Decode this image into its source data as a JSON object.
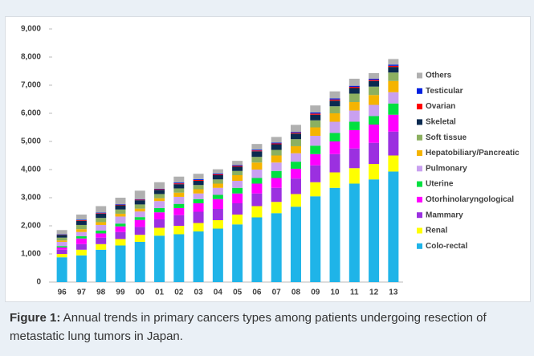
{
  "chart_data": {
    "type": "stacked-bar",
    "categories": [
      "96",
      "97",
      "98",
      "99",
      "00",
      "01",
      "02",
      "03",
      "04",
      "05",
      "06",
      "07",
      "08",
      "09",
      "10",
      "11",
      "12",
      "13"
    ],
    "series": [
      {
        "name": "Colo-rectal",
        "color": "#1fb4e8",
        "values": [
          880,
          950,
          1150,
          1300,
          1430,
          1650,
          1700,
          1800,
          1900,
          2050,
          2300,
          2450,
          2680,
          3050,
          3350,
          3500,
          3650,
          3930
        ]
      },
      {
        "name": "Renal",
        "color": "#ffff00",
        "values": [
          120,
          200,
          200,
          230,
          250,
          280,
          300,
          300,
          300,
          350,
          400,
          400,
          450,
          500,
          550,
          550,
          550,
          570
        ]
      },
      {
        "name": "Mammary",
        "color": "#9b30e0",
        "values": [
          150,
          200,
          230,
          250,
          280,
          300,
          380,
          400,
          400,
          400,
          450,
          500,
          550,
          600,
          650,
          700,
          750,
          850
        ]
      },
      {
        "name": "Otorhinolaryngological",
        "color": "#ff00ff",
        "values": [
          80,
          200,
          150,
          200,
          250,
          250,
          250,
          300,
          350,
          350,
          350,
          350,
          350,
          400,
          450,
          650,
          650,
          600
        ]
      },
      {
        "name": "Uterine",
        "color": "#00e040",
        "values": [
          50,
          80,
          100,
          100,
          100,
          150,
          150,
          150,
          150,
          200,
          200,
          250,
          250,
          300,
          300,
          300,
          300,
          400
        ]
      },
      {
        "name": "Pulmonary",
        "color": "#c9a0f0",
        "values": [
          150,
          150,
          200,
          250,
          200,
          250,
          250,
          200,
          250,
          250,
          300,
          300,
          300,
          350,
          400,
          400,
          400,
          400
        ]
      },
      {
        "name": "Hepatobiliary/Pancreatic",
        "color": "#f5b400",
        "values": [
          50,
          100,
          100,
          100,
          100,
          100,
          150,
          150,
          150,
          200,
          250,
          250,
          250,
          300,
          300,
          300,
          350,
          400
        ]
      },
      {
        "name": "Soft tissue",
        "color": "#8cb060",
        "values": [
          100,
          150,
          150,
          150,
          150,
          150,
          150,
          150,
          150,
          150,
          200,
          200,
          250,
          250,
          250,
          300,
          300,
          300
        ]
      },
      {
        "name": "Skeletal",
        "color": "#0a2a50",
        "values": [
          100,
          150,
          150,
          150,
          150,
          150,
          150,
          150,
          150,
          150,
          200,
          200,
          200,
          200,
          200,
          200,
          200,
          200
        ]
      },
      {
        "name": "Ovarian",
        "color": "#ff0000",
        "values": [
          10,
          20,
          20,
          20,
          20,
          20,
          30,
          30,
          30,
          30,
          30,
          30,
          30,
          40,
          40,
          40,
          40,
          40
        ]
      },
      {
        "name": "Testicular",
        "color": "#0020e0",
        "values": [
          10,
          20,
          20,
          20,
          20,
          20,
          30,
          30,
          30,
          30,
          30,
          30,
          30,
          40,
          40,
          40,
          40,
          40
        ]
      },
      {
        "name": "Others",
        "color": "#b0b0b0",
        "values": [
          150,
          180,
          230,
          230,
          300,
          230,
          210,
          190,
          150,
          150,
          200,
          200,
          250,
          250,
          250,
          250,
          200,
          200
        ]
      }
    ],
    "ylim": [
      0,
      9000
    ],
    "yticks": [
      0,
      {
        "value": 1000,
        "label": "1,000"
      },
      {
        "value": 2000,
        "label": "2,000"
      },
      {
        "value": 3000,
        "label": "3,000"
      },
      {
        "value": 4000,
        "label": "4,000"
      },
      {
        "value": 5000,
        "label": "5,000"
      },
      {
        "value": 6000,
        "label": "6,000"
      },
      {
        "value": 7000,
        "label": "7,000"
      },
      {
        "value": 8000,
        "label": "8,000"
      },
      {
        "value": 9000,
        "label": "9,000"
      }
    ],
    "legend": "right"
  },
  "caption": {
    "label": "Figure 1:",
    "text": " Annual trends in primary cancers types among patients undergoing resection of metastatic lung tumors in Japan."
  }
}
